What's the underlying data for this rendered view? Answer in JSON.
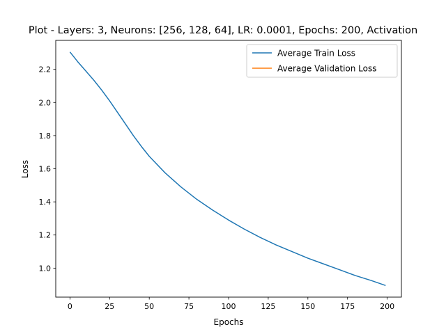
{
  "chart_data": {
    "type": "line",
    "title": "Plot - Layers: 3, Neurons: [256, 128, 64], LR: 0.0001, Epochs: 200, Activation",
    "xlabel": "Epochs",
    "ylabel": "Loss",
    "xlim": [
      -8.95,
      208.95
    ],
    "ylim": [
      0.825,
      2.375
    ],
    "xticks": [
      0,
      25,
      50,
      75,
      100,
      125,
      150,
      175,
      200
    ],
    "yticks": [
      1.0,
      1.2,
      1.4,
      1.6,
      1.8,
      2.0,
      2.2
    ],
    "ytick_labels": [
      "1.0",
      "1.2",
      "1.4",
      "1.6",
      "1.8",
      "2.0",
      "2.2"
    ],
    "grid": false,
    "legend_position": "top-right",
    "series": [
      {
        "name": "Average Train Loss",
        "color": "#1f77b4",
        "x": [
          0,
          5,
          10,
          15,
          20,
          25,
          30,
          35,
          40,
          45,
          50,
          60,
          70,
          80,
          90,
          100,
          110,
          120,
          130,
          140,
          150,
          160,
          170,
          180,
          190,
          199
        ],
        "y": [
          2.305,
          2.245,
          2.19,
          2.135,
          2.075,
          2.01,
          1.94,
          1.87,
          1.8,
          1.735,
          1.675,
          1.575,
          1.49,
          1.415,
          1.35,
          1.29,
          1.235,
          1.185,
          1.14,
          1.1,
          1.06,
          1.025,
          0.99,
          0.955,
          0.925,
          0.895
        ]
      },
      {
        "name": "Average Validation Loss",
        "color": "#ff7f0e",
        "x": [],
        "y": []
      }
    ]
  }
}
